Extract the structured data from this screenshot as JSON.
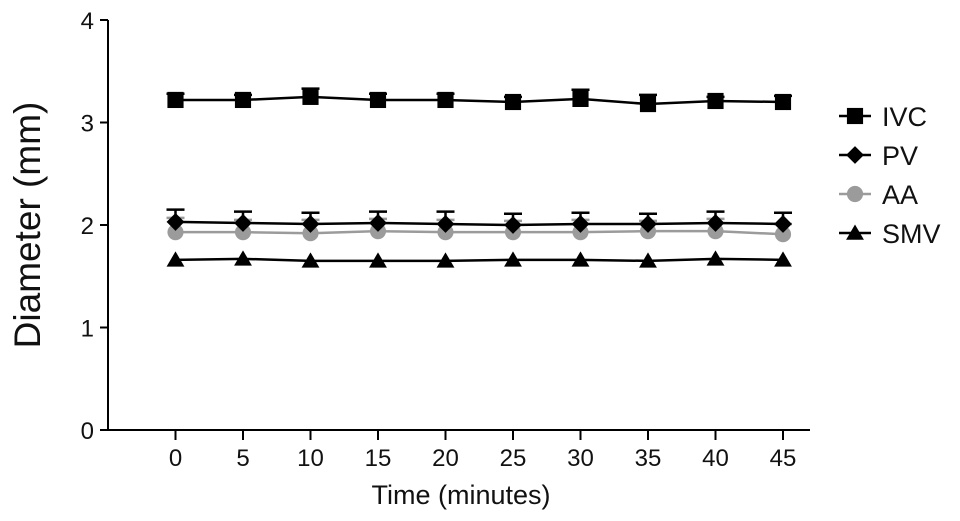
{
  "chart_data": {
    "type": "line",
    "title": "",
    "xlabel": "Time (minutes)",
    "ylabel": "Diameter (mm)",
    "x": [
      0,
      5,
      10,
      15,
      20,
      25,
      30,
      35,
      40,
      45
    ],
    "xlim": [
      -5,
      47
    ],
    "ylim": [
      0,
      4
    ],
    "yticks": [
      0,
      1,
      2,
      3,
      4
    ],
    "grid": false,
    "legend_position": "right",
    "series": [
      {
        "name": "IVC",
        "marker": "square",
        "color": "#000000",
        "values": [
          3.22,
          3.22,
          3.25,
          3.22,
          3.22,
          3.2,
          3.23,
          3.18,
          3.21,
          3.2
        ],
        "error_upper": [
          0.06,
          0.05,
          0.08,
          0.06,
          0.06,
          0.05,
          0.09,
          0.09,
          0.04,
          0.06
        ]
      },
      {
        "name": "PV",
        "marker": "diamond",
        "color": "#000000",
        "values": [
          2.03,
          2.02,
          2.01,
          2.02,
          2.01,
          2.0,
          2.01,
          2.01,
          2.02,
          2.01
        ],
        "error_upper": [
          0.12,
          0.11,
          0.11,
          0.11,
          0.12,
          0.11,
          0.11,
          0.1,
          0.11,
          0.11
        ]
      },
      {
        "name": "AA",
        "marker": "circle",
        "color": "#9b9b9b",
        "values": [
          1.93,
          1.93,
          1.92,
          1.94,
          1.93,
          1.93,
          1.93,
          1.94,
          1.94,
          1.91
        ],
        "error_upper": [
          0.14,
          0.12,
          0.13,
          0.12,
          0.12,
          0.11,
          0.12,
          0.1,
          0.12,
          0.1
        ]
      },
      {
        "name": "SMV",
        "marker": "triangle",
        "color": "#000000",
        "values": [
          1.66,
          1.67,
          1.65,
          1.65,
          1.65,
          1.66,
          1.66,
          1.65,
          1.67,
          1.66
        ],
        "error_upper": [
          0.02,
          0.02,
          0.02,
          0.02,
          0.02,
          0.02,
          0.02,
          0.02,
          0.02,
          0.02
        ]
      }
    ]
  }
}
